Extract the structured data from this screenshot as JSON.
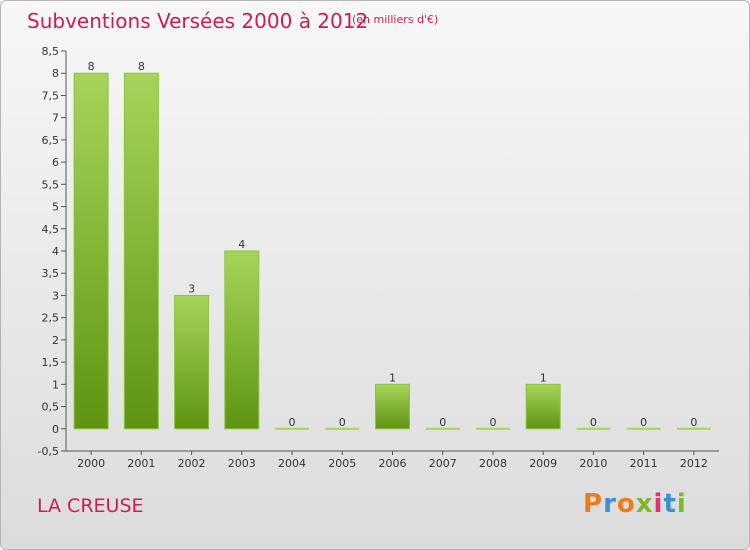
{
  "header": {
    "title": "Subventions Versées 2000 à 2012",
    "unit": "(en milliers d'€)"
  },
  "footer": {
    "place": "LA CREUSE",
    "logo": "Proxiti",
    "logo_colors": [
      "#e87c1e",
      "#3d8fd4",
      "#e87c1e",
      "#7db928",
      "#e1306c",
      "#3d8fd4",
      "#7db928"
    ]
  },
  "colors": {
    "bar_light": "#a6d45a",
    "bar_dark": "#5e9412",
    "title": "#c81e5a"
  },
  "chart_data": {
    "type": "bar",
    "title": "Subventions Versées 2000 à 2012",
    "subtitle": "(en milliers d'€)",
    "categories": [
      "2000",
      "2001",
      "2002",
      "2003",
      "2004",
      "2005",
      "2006",
      "2007",
      "2008",
      "2009",
      "2010",
      "2011",
      "2012"
    ],
    "values": [
      8,
      8,
      3,
      4,
      0,
      0,
      1,
      0,
      0,
      1,
      0,
      0,
      0
    ],
    "data_labels": [
      "8",
      "8",
      "3",
      "4",
      "0",
      "0",
      "1",
      "0",
      "0",
      "1",
      "0",
      "0",
      "0"
    ],
    "ylim": [
      -0.5,
      8.5
    ],
    "yticks": [
      "-0,5",
      "0",
      "0,5",
      "1",
      "1,5",
      "2",
      "2,5",
      "3",
      "3,5",
      "4",
      "4,5",
      "5",
      "5,5",
      "6",
      "6,5",
      "7",
      "7,5",
      "8",
      "8,5"
    ],
    "ytick_values": [
      -0.5,
      0,
      0.5,
      1,
      1.5,
      2,
      2.5,
      3,
      3.5,
      4,
      4.5,
      5,
      5.5,
      6,
      6.5,
      7,
      7.5,
      8,
      8.5
    ],
    "grid": false,
    "legend": "none"
  }
}
